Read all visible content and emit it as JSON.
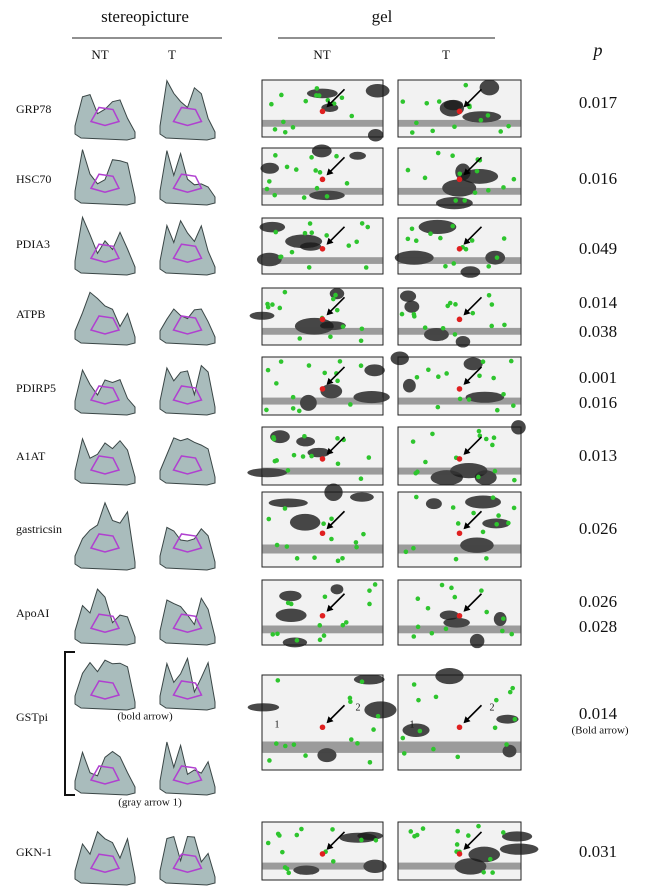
{
  "header": {
    "stereopicture": "stereopicture",
    "gel": "gel",
    "p": "p",
    "stereo_nt": "NT",
    "stereo_t": "T",
    "gel_nt": "NT",
    "gel_t": "T"
  },
  "rows": [
    {
      "label": "GRP78",
      "p": [
        "0.017"
      ]
    },
    {
      "label": "HSC70",
      "p": [
        "0.016"
      ]
    },
    {
      "label": "PDIA3",
      "p": [
        "0.049"
      ]
    },
    {
      "label": "ATPB",
      "p": [
        "0.014",
        "0.038"
      ]
    },
    {
      "label": "PDIRP5",
      "p": [
        "0.001",
        "0.016"
      ]
    },
    {
      "label": "A1AT",
      "p": [
        "0.013"
      ]
    },
    {
      "label": "gastricsin",
      "p": [
        "0.026"
      ]
    },
    {
      "label": "ApoAI",
      "p": [
        "0.026",
        "0.028"
      ]
    },
    {
      "label": "GSTpi",
      "p": [
        "0.014"
      ],
      "p_note": "(Bold arrow)",
      "captions": [
        "(bold arrow)",
        "(gray arrow 1)"
      ],
      "gel_marks": [
        "1",
        "2",
        "1",
        "2"
      ]
    },
    {
      "label": "GKN-1",
      "p": [
        "0.031"
      ]
    }
  ]
}
